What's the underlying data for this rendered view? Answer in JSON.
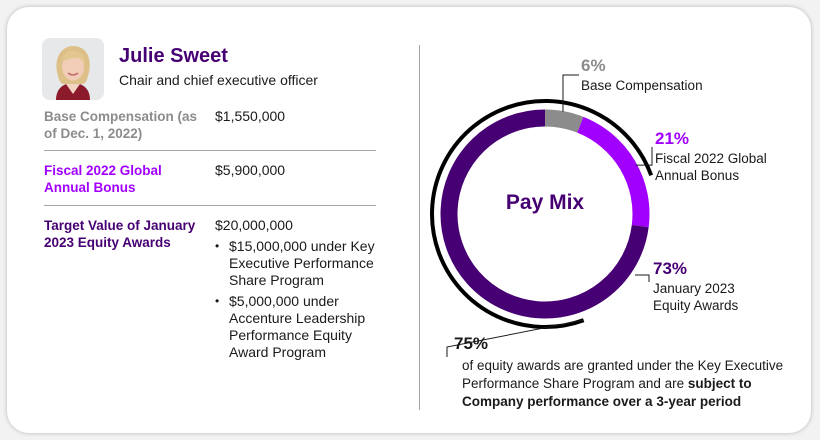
{
  "profile": {
    "name": "Julie Sweet",
    "title": "Chair and chief executive officer"
  },
  "compensation": [
    {
      "label": "Base Compensation (as of Dec. 1, 2022)",
      "value": "$1,550,000"
    },
    {
      "label": "Fiscal 2022 Global Annual Bonus",
      "value": "$5,900,000"
    },
    {
      "label": "Target Value of January 2023 Equity Awards",
      "value": "$20,000,000",
      "bullets": [
        "$15,000,000 under Key Executive Performance Share Program",
        "$5,000,000 under Accenture Leadership Performance Equity Award Program"
      ]
    }
  ],
  "colors": {
    "base": "#8c8c8c",
    "bonus": "#a100ff",
    "equity": "#460073",
    "bracket": "#000000"
  },
  "chart_data": {
    "type": "pie",
    "subtype": "donut",
    "title": "Pay Mix",
    "categories": [
      "Base Compensation",
      "Fiscal 2022 Global Annual Bonus",
      "January 2023 Equity Awards"
    ],
    "values": [
      6,
      21,
      73
    ],
    "value_labels": [
      "6%",
      "21%",
      "73%"
    ],
    "segment_labels": [
      {
        "pct": "6%",
        "text": "Base Compensation"
      },
      {
        "pct": "21%",
        "text": "Fiscal 2022 Global Annual Bonus"
      },
      {
        "pct": "73%",
        "text": "January 2023 Equity Awards"
      }
    ],
    "annotation": {
      "pct": "75%",
      "text_plain": "of equity awards are granted under the Key Executive Performance Share Program and are",
      "text_bold": "subject to Company performance over a 3-year period"
    }
  }
}
